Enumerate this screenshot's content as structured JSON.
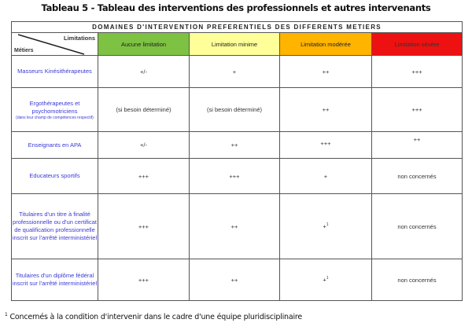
{
  "title": "Tableau 5 - Tableau des interventions des professionnels et autres intervenants",
  "domain_header": "DOMAINES D'INTERVENTION PREFERENTIELS DES DIFFERENTS METIERS",
  "corner": {
    "top": "Limitations",
    "bottom": "Métiers"
  },
  "columns": [
    {
      "label": "Aucune limitation",
      "color": "#7dc242"
    },
    {
      "label": "Limitation minime",
      "color": "#ffff99"
    },
    {
      "label": "Limitation modérée",
      "color": "#ffb400"
    },
    {
      "label": "Limitation sévère",
      "color": "#ee1111"
    }
  ],
  "rows": [
    {
      "job": "Masseurs Kinésithérapeutes",
      "note": "",
      "cells": [
        "+/-",
        "+",
        "++",
        "+++"
      ]
    },
    {
      "job": "Ergothérapeutes et psychomotriciens",
      "note": "(dans leur champ de compétences respectif)",
      "cells": [
        "(si besoin déterminé)",
        "(si besoin déterminé)",
        "++",
        "+++"
      ]
    },
    {
      "job": "Enseignants en APA",
      "note": "",
      "cells": [
        "+/-",
        "++",
        "+++",
        "++"
      ]
    },
    {
      "job": "Educateurs sportifs",
      "note": "",
      "cells": [
        "+++",
        "+++",
        "+",
        "non concernés"
      ]
    },
    {
      "job": "Titulaires d'un titre à finalité professionnelle ou d'un certificat de qualification professionnelle inscrit sur l'arrêté interministériel",
      "note": "",
      "cells": [
        "+++",
        "++",
        "+",
        "non concernés"
      ],
      "sup": "1"
    },
    {
      "job": "Titulaires d'un diplôme fédéral inscrit sur l'arrêté interministériel",
      "note": "",
      "cells": [
        "+++",
        "++",
        "+",
        "non concernés"
      ],
      "sup": "1"
    }
  ],
  "footnote": {
    "mark": "1",
    "text": "Concernés à la condition d'intervenir dans le cadre d'une équipe pluridisciplinaire"
  }
}
